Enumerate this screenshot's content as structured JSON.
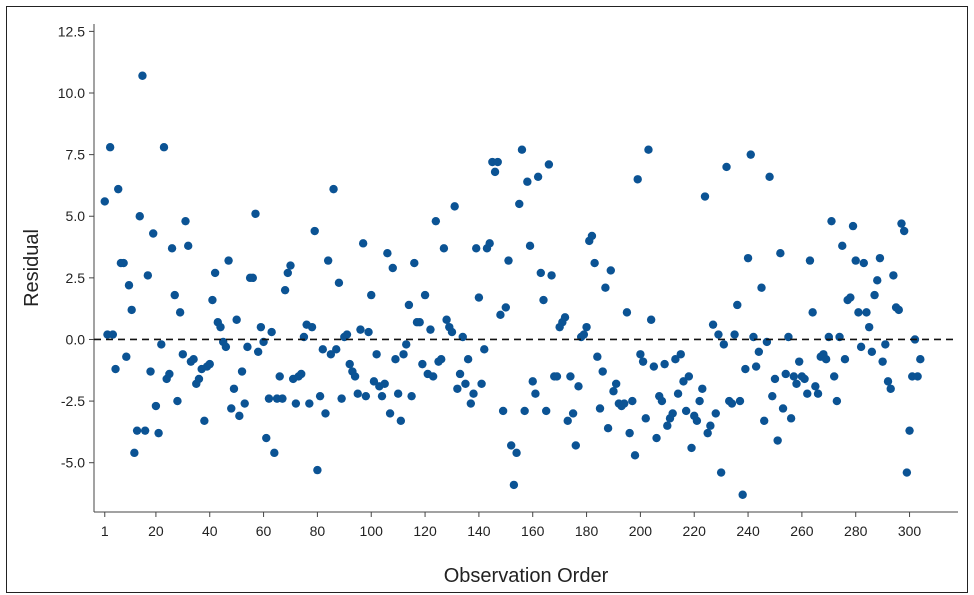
{
  "chart_data": {
    "type": "scatter",
    "title": "",
    "xlabel": "Observation Order",
    "ylabel": "Residual",
    "xlim": [
      -3,
      318
    ],
    "ylim": [
      -7,
      12.8
    ],
    "x_ticks": [
      1,
      20,
      40,
      60,
      80,
      100,
      120,
      140,
      160,
      180,
      200,
      220,
      240,
      260,
      280,
      300
    ],
    "y_ticks": [
      -5.0,
      -2.5,
      0.0,
      2.5,
      5.0,
      7.5,
      10.0,
      12.5
    ],
    "x_tick_labels": [
      "1",
      "20",
      "40",
      "60",
      "80",
      "100",
      "120",
      "140",
      "160",
      "180",
      "200",
      "220",
      "240",
      "260",
      "280",
      "300"
    ],
    "y_tick_labels": [
      "-5.0",
      "-2.5",
      "0.0",
      "2.5",
      "5.0",
      "7.5",
      "10.0",
      "12.5"
    ],
    "reference_line": {
      "y": 0.0,
      "style": "dashed"
    },
    "grid": false,
    "marker_color": "#0b5394",
    "points": [
      [
        1,
        5.6
      ],
      [
        2,
        0.2
      ],
      [
        3,
        7.8
      ],
      [
        4,
        0.2
      ],
      [
        5,
        -1.2
      ],
      [
        6,
        6.1
      ],
      [
        7,
        3.1
      ],
      [
        8,
        3.1
      ],
      [
        9,
        -0.7
      ],
      [
        10,
        2.2
      ],
      [
        11,
        1.2
      ],
      [
        12,
        -4.6
      ],
      [
        13,
        -3.7
      ],
      [
        14,
        5.0
      ],
      [
        15,
        10.7
      ],
      [
        16,
        -3.7
      ],
      [
        17,
        2.6
      ],
      [
        18,
        -1.3
      ],
      [
        19,
        4.3
      ],
      [
        20,
        -2.7
      ],
      [
        21,
        -3.8
      ],
      [
        22,
        -0.2
      ],
      [
        23,
        7.8
      ],
      [
        24,
        -1.6
      ],
      [
        25,
        -1.4
      ],
      [
        26,
        3.7
      ],
      [
        27,
        1.8
      ],
      [
        28,
        -2.5
      ],
      [
        29,
        1.1
      ],
      [
        30,
        -0.6
      ],
      [
        31,
        4.8
      ],
      [
        32,
        3.8
      ],
      [
        33,
        -0.9
      ],
      [
        34,
        -0.8
      ],
      [
        35,
        -1.8
      ],
      [
        36,
        -1.6
      ],
      [
        37,
        -1.2
      ],
      [
        38,
        -3.3
      ],
      [
        39,
        -1.1
      ],
      [
        40,
        -1.0
      ],
      [
        41,
        1.6
      ],
      [
        42,
        2.7
      ],
      [
        43,
        0.7
      ],
      [
        44,
        0.5
      ],
      [
        45,
        -0.1
      ],
      [
        46,
        -0.3
      ],
      [
        47,
        3.2
      ],
      [
        48,
        -2.8
      ],
      [
        49,
        -2.0
      ],
      [
        50,
        0.8
      ],
      [
        51,
        -3.1
      ],
      [
        52,
        -1.3
      ],
      [
        53,
        -2.6
      ],
      [
        54,
        -0.3
      ],
      [
        55,
        2.5
      ],
      [
        56,
        2.5
      ],
      [
        57,
        5.1
      ],
      [
        58,
        -0.5
      ],
      [
        59,
        0.5
      ],
      [
        60,
        -0.1
      ],
      [
        61,
        -4.0
      ],
      [
        62,
        -2.4
      ],
      [
        63,
        0.3
      ],
      [
        64,
        -4.6
      ],
      [
        65,
        -2.4
      ],
      [
        66,
        -1.5
      ],
      [
        67,
        -2.4
      ],
      [
        68,
        2.0
      ],
      [
        69,
        2.7
      ],
      [
        70,
        3.0
      ],
      [
        71,
        -1.6
      ],
      [
        72,
        -2.6
      ],
      [
        73,
        -1.5
      ],
      [
        74,
        -1.4
      ],
      [
        75,
        0.1
      ],
      [
        76,
        0.6
      ],
      [
        77,
        -2.6
      ],
      [
        78,
        0.5
      ],
      [
        79,
        4.4
      ],
      [
        80,
        -5.3
      ],
      [
        81,
        -2.3
      ],
      [
        82,
        -0.4
      ],
      [
        83,
        -3.0
      ],
      [
        84,
        3.2
      ],
      [
        85,
        -0.6
      ],
      [
        86,
        6.1
      ],
      [
        87,
        -0.4
      ],
      [
        88,
        2.3
      ],
      [
        89,
        -2.4
      ],
      [
        90,
        0.1
      ],
      [
        91,
        0.2
      ],
      [
        92,
        -1.0
      ],
      [
        93,
        -1.3
      ],
      [
        94,
        -1.5
      ],
      [
        95,
        -2.2
      ],
      [
        96,
        0.4
      ],
      [
        97,
        3.9
      ],
      [
        98,
        -2.3
      ],
      [
        99,
        0.3
      ],
      [
        100,
        1.8
      ],
      [
        101,
        -1.7
      ],
      [
        102,
        -0.6
      ],
      [
        103,
        -1.9
      ],
      [
        104,
        -2.3
      ],
      [
        105,
        -1.8
      ],
      [
        106,
        3.5
      ],
      [
        107,
        -3.0
      ],
      [
        108,
        2.9
      ],
      [
        109,
        -0.8
      ],
      [
        110,
        -2.2
      ],
      [
        111,
        -3.3
      ],
      [
        112,
        -0.6
      ],
      [
        113,
        -0.2
      ],
      [
        114,
        1.4
      ],
      [
        115,
        -2.3
      ],
      [
        116,
        3.1
      ],
      [
        117,
        0.7
      ],
      [
        118,
        0.7
      ],
      [
        119,
        -1.0
      ],
      [
        120,
        1.8
      ],
      [
        121,
        -1.4
      ],
      [
        122,
        0.4
      ],
      [
        123,
        -1.5
      ],
      [
        124,
        4.8
      ],
      [
        125,
        -0.9
      ],
      [
        126,
        -0.8
      ],
      [
        127,
        3.7
      ],
      [
        128,
        0.8
      ],
      [
        129,
        0.5
      ],
      [
        130,
        0.3
      ],
      [
        131,
        5.4
      ],
      [
        132,
        -2.0
      ],
      [
        133,
        -1.4
      ],
      [
        134,
        0.1
      ],
      [
        135,
        -1.8
      ],
      [
        136,
        -0.8
      ],
      [
        137,
        -2.6
      ],
      [
        138,
        -2.2
      ],
      [
        139,
        3.7
      ],
      [
        140,
        1.7
      ],
      [
        141,
        -1.8
      ],
      [
        142,
        -0.4
      ],
      [
        143,
        3.7
      ],
      [
        144,
        3.9
      ],
      [
        145,
        7.2
      ],
      [
        146,
        6.8
      ],
      [
        147,
        7.2
      ],
      [
        148,
        1.0
      ],
      [
        149,
        -2.9
      ],
      [
        150,
        1.3
      ],
      [
        151,
        3.2
      ],
      [
        152,
        -4.3
      ],
      [
        153,
        -5.9
      ],
      [
        154,
        -4.6
      ],
      [
        155,
        5.5
      ],
      [
        156,
        7.7
      ],
      [
        157,
        -2.9
      ],
      [
        158,
        6.4
      ],
      [
        159,
        3.8
      ],
      [
        160,
        -1.7
      ],
      [
        161,
        -2.2
      ],
      [
        162,
        6.6
      ],
      [
        163,
        2.7
      ],
      [
        164,
        1.6
      ],
      [
        165,
        -2.9
      ],
      [
        166,
        7.1
      ],
      [
        167,
        2.6
      ],
      [
        168,
        -1.5
      ],
      [
        169,
        -1.5
      ],
      [
        170,
        0.5
      ],
      [
        171,
        0.7
      ],
      [
        172,
        0.9
      ],
      [
        173,
        -3.3
      ],
      [
        174,
        -1.5
      ],
      [
        175,
        -3.0
      ],
      [
        176,
        -4.3
      ],
      [
        177,
        -1.9
      ],
      [
        178,
        0.1
      ],
      [
        179,
        0.2
      ],
      [
        180,
        0.5
      ],
      [
        181,
        4.0
      ],
      [
        182,
        4.2
      ],
      [
        183,
        3.1
      ],
      [
        184,
        -0.7
      ],
      [
        185,
        -2.8
      ],
      [
        186,
        -1.3
      ],
      [
        187,
        2.1
      ],
      [
        188,
        -3.6
      ],
      [
        189,
        2.8
      ],
      [
        190,
        -2.1
      ],
      [
        191,
        -1.8
      ],
      [
        192,
        -2.6
      ],
      [
        193,
        -2.7
      ],
      [
        194,
        -2.6
      ],
      [
        195,
        1.1
      ],
      [
        196,
        -3.8
      ],
      [
        197,
        -2.5
      ],
      [
        198,
        -4.7
      ],
      [
        199,
        6.5
      ],
      [
        200,
        -0.6
      ],
      [
        201,
        -0.9
      ],
      [
        202,
        -3.2
      ],
      [
        203,
        7.7
      ],
      [
        204,
        0.8
      ],
      [
        205,
        -1.1
      ],
      [
        206,
        -4.0
      ],
      [
        207,
        -2.3
      ],
      [
        208,
        -2.5
      ],
      [
        209,
        -1.0
      ],
      [
        210,
        -3.5
      ],
      [
        211,
        -3.2
      ],
      [
        212,
        -3.0
      ],
      [
        213,
        -0.8
      ],
      [
        214,
        -2.2
      ],
      [
        215,
        -0.6
      ],
      [
        216,
        -1.7
      ],
      [
        217,
        -2.9
      ],
      [
        218,
        -1.5
      ],
      [
        219,
        -4.4
      ],
      [
        220,
        -3.1
      ],
      [
        221,
        -3.3
      ],
      [
        222,
        -2.5
      ],
      [
        223,
        -2.0
      ],
      [
        224,
        5.8
      ],
      [
        225,
        -3.8
      ],
      [
        226,
        -3.5
      ],
      [
        227,
        0.6
      ],
      [
        228,
        -3.0
      ],
      [
        229,
        0.2
      ],
      [
        230,
        -5.4
      ],
      [
        231,
        -0.2
      ],
      [
        232,
        7.0
      ],
      [
        233,
        -2.5
      ],
      [
        234,
        -2.6
      ],
      [
        235,
        0.2
      ],
      [
        236,
        1.4
      ],
      [
        237,
        -2.5
      ],
      [
        238,
        -6.3
      ],
      [
        239,
        -1.2
      ],
      [
        240,
        3.3
      ],
      [
        241,
        7.5
      ],
      [
        242,
        0.1
      ],
      [
        243,
        -1.1
      ],
      [
        244,
        -0.5
      ],
      [
        245,
        2.1
      ],
      [
        246,
        -3.3
      ],
      [
        247,
        -0.1
      ],
      [
        248,
        6.6
      ],
      [
        249,
        -2.3
      ],
      [
        250,
        -1.6
      ],
      [
        251,
        -4.1
      ],
      [
        252,
        3.5
      ],
      [
        253,
        -2.8
      ],
      [
        254,
        -1.4
      ],
      [
        255,
        0.1
      ],
      [
        256,
        -3.2
      ],
      [
        257,
        -1.5
      ],
      [
        258,
        -1.8
      ],
      [
        259,
        -0.9
      ],
      [
        260,
        -1.5
      ],
      [
        261,
        -1.6
      ],
      [
        262,
        -2.2
      ],
      [
        263,
        3.2
      ],
      [
        264,
        1.1
      ],
      [
        265,
        -1.9
      ],
      [
        266,
        -2.2
      ],
      [
        267,
        -0.7
      ],
      [
        268,
        -0.6
      ],
      [
        269,
        -0.8
      ],
      [
        270,
        0.1
      ],
      [
        271,
        4.8
      ],
      [
        272,
        -1.5
      ],
      [
        273,
        -2.5
      ],
      [
        274,
        0.1
      ],
      [
        275,
        3.8
      ],
      [
        276,
        -0.8
      ],
      [
        277,
        1.6
      ],
      [
        278,
        1.7
      ],
      [
        279,
        4.6
      ],
      [
        280,
        3.2
      ],
      [
        281,
        1.1
      ],
      [
        282,
        -0.3
      ],
      [
        283,
        3.1
      ],
      [
        284,
        1.1
      ],
      [
        285,
        0.5
      ],
      [
        286,
        -0.5
      ],
      [
        287,
        1.8
      ],
      [
        288,
        2.4
      ],
      [
        289,
        3.3
      ],
      [
        290,
        -0.9
      ],
      [
        291,
        -0.2
      ],
      [
        292,
        -1.7
      ],
      [
        293,
        -2.0
      ],
      [
        294,
        2.6
      ],
      [
        295,
        1.3
      ],
      [
        296,
        1.2
      ],
      [
        297,
        4.7
      ],
      [
        298,
        4.4
      ],
      [
        299,
        -5.4
      ],
      [
        300,
        -3.7
      ],
      [
        301,
        -1.5
      ],
      [
        302,
        0.0
      ],
      [
        303,
        -1.5
      ],
      [
        304,
        -0.8
      ]
    ]
  }
}
